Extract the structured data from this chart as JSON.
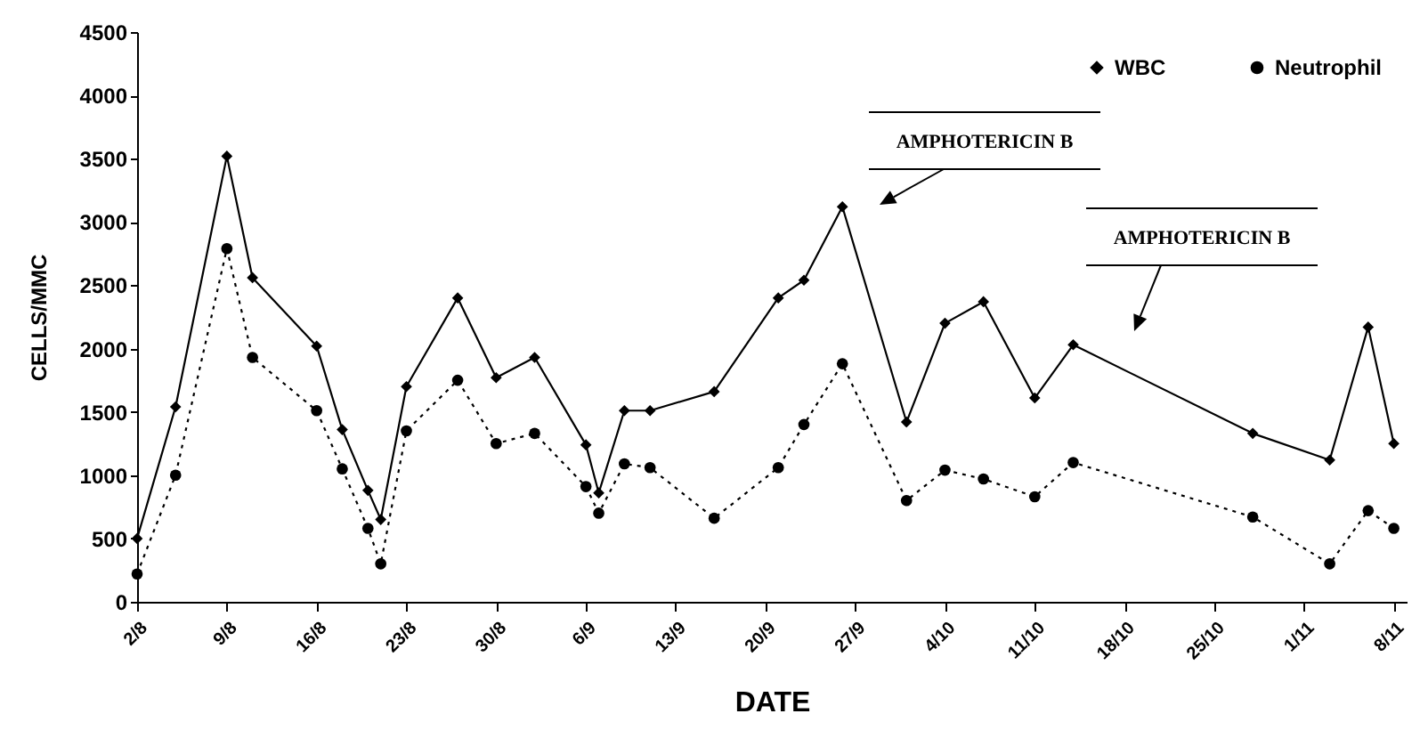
{
  "chart_data": {
    "type": "line",
    "xlabel": "DATE",
    "ylabel": "CELLS/MMC",
    "x": [
      "--08-02",
      "--08-05",
      "--08-09",
      "--08-11",
      "--08-16",
      "--08-18",
      "--08-20",
      "--08-21",
      "--08-23",
      "--08-27",
      "--08-30",
      "--09-02",
      "--09-06",
      "--09-07",
      "--09-09",
      "--09-11",
      "--09-16",
      "--09-21",
      "--09-23",
      "--09-26",
      "--10-01",
      "--10-04",
      "--10-07",
      "--10-11",
      "--10-14",
      "--10-28",
      "--11-03",
      "--11-06",
      "--11-08"
    ],
    "series": [
      {
        "name": "WBC",
        "color": "#000000",
        "marker": "diamond",
        "line_style": "solid",
        "values": [
          500,
          1540,
          3520,
          2560,
          2020,
          1360,
          880,
          650,
          1700,
          2400,
          1770,
          1930,
          1240,
          860,
          1510,
          1510,
          1660,
          2400,
          2540,
          3120,
          1420,
          2200,
          2370,
          1610,
          2030,
          1330,
          1120,
          2170,
          1250
        ]
      },
      {
        "name": "Neutrophil",
        "color": "#000000",
        "marker": "circle",
        "line_style": "dotted",
        "values": [
          220,
          1000,
          2790,
          1930,
          1510,
          1050,
          580,
          300,
          1350,
          1750,
          1250,
          1330,
          910,
          700,
          1090,
          1060,
          660,
          1060,
          1400,
          1880,
          800,
          1040,
          970,
          830,
          1100,
          670,
          300,
          720,
          580
        ]
      }
    ],
    "xlim": [
      "--08-02",
      "--11-09"
    ],
    "xticks": [
      {
        "value": "--08-02",
        "label": "2/8"
      },
      {
        "value": "--08-09",
        "label": "9/8"
      },
      {
        "value": "--08-16",
        "label": "16/8"
      },
      {
        "value": "--08-23",
        "label": "23/8"
      },
      {
        "value": "--08-30",
        "label": "30/8"
      },
      {
        "value": "--09-06",
        "label": "6/9"
      },
      {
        "value": "--09-13",
        "label": "13/9"
      },
      {
        "value": "--09-20",
        "label": "20/9"
      },
      {
        "value": "--09-27",
        "label": "27/9"
      },
      {
        "value": "--10-04",
        "label": "4/10"
      },
      {
        "value": "--10-11",
        "label": "11/10"
      },
      {
        "value": "--10-18",
        "label": "18/10"
      },
      {
        "value": "--10-25",
        "label": "25/10"
      },
      {
        "value": "--11-01",
        "label": "1/11"
      },
      {
        "value": "--11-08",
        "label": "8/11"
      }
    ],
    "ylim": [
      0,
      4500
    ],
    "yticks": [
      0,
      500,
      1000,
      1500,
      2000,
      2500,
      3000,
      3500,
      4000,
      4500
    ],
    "grid": false,
    "legend": "top right",
    "annotations": [
      "AMPHOTERICIN B",
      "AMPHOTERICIN B"
    ]
  }
}
